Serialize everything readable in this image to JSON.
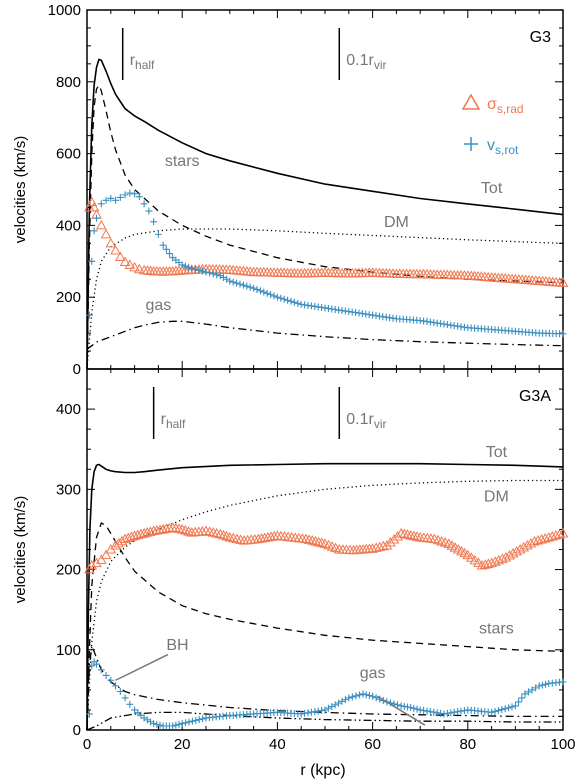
{
  "chart_data": [
    {
      "type": "line",
      "label": "G3",
      "ylabel": "velocities (km/s)",
      "xlim": [
        0,
        100
      ],
      "ylim": [
        0,
        1000
      ],
      "yticks": [
        0,
        200,
        400,
        600,
        800,
        1000
      ],
      "markers": [
        {
          "label": "r",
          "sub": "half",
          "x": 7.5
        },
        {
          "label": "0.1r",
          "sub": "vir",
          "x": 53
        }
      ],
      "legend": [
        {
          "symbol": "triangle",
          "name": "σ",
          "sub": "s,rad",
          "color": "#f07850"
        },
        {
          "symbol": "plus",
          "name": "v",
          "sub": "s,rot",
          "color": "#3a90c0"
        }
      ],
      "annotations": [
        {
          "text": "stars",
          "x": 20,
          "y": 565
        },
        {
          "text": "Tot",
          "x": 85,
          "y": 490
        },
        {
          "text": "DM",
          "x": 65,
          "y": 395
        },
        {
          "text": "gas",
          "x": 15,
          "y": 165
        }
      ],
      "series": [
        {
          "name": "Tot",
          "style": "solid",
          "x": [
            0,
            0.5,
            1,
            1.5,
            2,
            2.5,
            3,
            4,
            5,
            6,
            7,
            8,
            10,
            12,
            15,
            20,
            25,
            30,
            40,
            50,
            60,
            70,
            80,
            90,
            100
          ],
          "values": [
            0,
            450,
            680,
            790,
            840,
            862,
            860,
            830,
            795,
            765,
            745,
            725,
            705,
            690,
            665,
            630,
            600,
            580,
            545,
            515,
            495,
            475,
            460,
            445,
            430
          ]
        },
        {
          "name": "stars",
          "style": "dash",
          "x": [
            0,
            0.5,
            1,
            1.5,
            2,
            2.5,
            3,
            4,
            5,
            6,
            8,
            10,
            15,
            20,
            25,
            30,
            40,
            50,
            60,
            70,
            80,
            90,
            100
          ],
          "values": [
            0,
            350,
            600,
            730,
            780,
            790,
            775,
            720,
            660,
            610,
            540,
            500,
            440,
            400,
            370,
            345,
            310,
            285,
            270,
            258,
            250,
            245,
            240
          ]
        },
        {
          "name": "DM",
          "style": "dot",
          "x": [
            0,
            0.5,
            1,
            2,
            3,
            5,
            8,
            10,
            15,
            20,
            30,
            40,
            50,
            60,
            70,
            80,
            90,
            100
          ],
          "values": [
            0,
            80,
            160,
            250,
            300,
            340,
            365,
            375,
            385,
            390,
            390,
            385,
            378,
            372,
            366,
            360,
            355,
            350
          ]
        },
        {
          "name": "gas",
          "style": "dashdot",
          "x": [
            0,
            1,
            2,
            4,
            6,
            8,
            10,
            12,
            15,
            18,
            20,
            25,
            30,
            40,
            50,
            60,
            70,
            80,
            90,
            100
          ],
          "values": [
            55,
            65,
            75,
            85,
            95,
            105,
            115,
            122,
            130,
            133,
            133,
            125,
            115,
            100,
            90,
            82,
            76,
            72,
            68,
            65
          ]
        },
        {
          "name": "sigma_s_rad",
          "style": "triangle",
          "color": "#f07850",
          "x": [
            0.5,
            1,
            1.5,
            2,
            3,
            4,
            5,
            6,
            7,
            8,
            9,
            10,
            11,
            12,
            14,
            16,
            18,
            20,
            22,
            25,
            30,
            35,
            40,
            45,
            50,
            55,
            60,
            65,
            70,
            75,
            80,
            85,
            90,
            95,
            100
          ],
          "values": [
            450,
            465,
            450,
            430,
            400,
            375,
            350,
            330,
            312,
            298,
            290,
            283,
            278,
            275,
            272,
            271,
            272,
            274,
            276,
            278,
            276,
            270,
            268,
            266,
            268,
            266,
            268,
            265,
            264,
            262,
            260,
            255,
            250,
            245,
            240
          ]
        },
        {
          "name": "v_s_rot",
          "style": "plus",
          "color": "#3a90c0",
          "x": [
            0.5,
            1,
            1.5,
            2,
            3,
            4,
            5,
            6,
            7,
            8,
            9,
            10,
            11,
            12,
            13,
            14,
            15,
            16,
            18,
            20,
            22,
            25,
            28,
            30,
            35,
            40,
            45,
            50,
            55,
            60,
            65,
            70,
            75,
            80,
            85,
            90,
            95,
            100
          ],
          "values": [
            150,
            300,
            385,
            420,
            460,
            470,
            475,
            470,
            478,
            485,
            490,
            488,
            480,
            460,
            440,
            410,
            375,
            345,
            310,
            290,
            280,
            270,
            260,
            245,
            225,
            200,
            180,
            170,
            160,
            150,
            140,
            135,
            125,
            115,
            110,
            105,
            100,
            98
          ]
        }
      ]
    },
    {
      "type": "line",
      "label": "G3A",
      "xlabel": "r (kpc)",
      "ylabel": "velocities (km/s)",
      "xlim": [
        0,
        100
      ],
      "ylim": [
        0,
        450
      ],
      "yticks": [
        0,
        100,
        200,
        300,
        400
      ],
      "xticks": [
        0,
        20,
        40,
        60,
        80,
        100
      ],
      "markers": [
        {
          "label": "r",
          "sub": "half",
          "x": 14
        },
        {
          "label": "0.1r",
          "sub": "vir",
          "x": 53
        }
      ],
      "annotations": [
        {
          "text": "Tot",
          "x": 86,
          "y": 340
        },
        {
          "text": "DM",
          "x": 86,
          "y": 285
        },
        {
          "text": "stars",
          "x": 86,
          "y": 120
        },
        {
          "text": "BH",
          "x": 19,
          "y": 100
        },
        {
          "text": "gas",
          "x": 60,
          "y": 65
        }
      ],
      "arrows": [
        {
          "from": [
            17,
            94
          ],
          "to": [
            6,
            62
          ]
        },
        {
          "from": [
            61,
            42
          ],
          "to": [
            71,
            6
          ]
        }
      ],
      "series": [
        {
          "name": "Tot",
          "style": "solid",
          "x": [
            0,
            0.3,
            0.6,
            1,
            1.5,
            2,
            2.5,
            3,
            4,
            5,
            6,
            8,
            10,
            12,
            15,
            20,
            30,
            40,
            50,
            60,
            70,
            80,
            90,
            100
          ],
          "values": [
            0,
            150,
            250,
            300,
            322,
            330,
            331,
            329,
            325,
            323,
            322,
            321,
            321,
            322,
            324,
            327,
            330,
            331,
            332,
            332,
            332,
            331,
            330,
            328
          ]
        },
        {
          "name": "DM",
          "style": "dot",
          "x": [
            0,
            0.5,
            1,
            2,
            3,
            5,
            8,
            10,
            15,
            20,
            25,
            30,
            40,
            50,
            60,
            70,
            80,
            90,
            100
          ],
          "values": [
            0,
            60,
            110,
            160,
            185,
            210,
            228,
            236,
            250,
            262,
            272,
            280,
            292,
            300,
            305,
            308,
            310,
            311,
            311
          ]
        },
        {
          "name": "stars",
          "style": "dash",
          "x": [
            0,
            0.5,
            1,
            2,
            3,
            4,
            5,
            6,
            8,
            10,
            15,
            20,
            25,
            30,
            40,
            50,
            60,
            70,
            80,
            90,
            100
          ],
          "values": [
            0,
            100,
            180,
            240,
            258,
            255,
            245,
            235,
            215,
            198,
            172,
            155,
            145,
            138,
            127,
            118,
            112,
            108,
            104,
            100,
            98
          ]
        },
        {
          "name": "BH",
          "style": "dashdot",
          "x": [
            0,
            0.5,
            1,
            2,
            3,
            5,
            8,
            10,
            15,
            20,
            30,
            40,
            50,
            60,
            70,
            80,
            90,
            100
          ],
          "values": [
            0,
            80,
            105,
            90,
            75,
            60,
            48,
            44,
            38,
            34,
            28,
            24,
            22,
            20,
            19,
            18,
            17,
            17
          ]
        },
        {
          "name": "gas",
          "style": "dashdot2",
          "x": [
            0,
            2,
            5,
            10,
            15,
            20,
            30,
            40,
            50,
            60,
            70,
            80,
            90,
            100
          ],
          "values": [
            0,
            5,
            15,
            20,
            22,
            22,
            18,
            15,
            13,
            12,
            11,
            11,
            10,
            10
          ]
        },
        {
          "name": "sigma_s_rad",
          "style": "triangle",
          "color": "#f07850",
          "x": [
            0.5,
            1,
            2,
            3,
            4,
            5,
            6,
            8,
            10,
            12,
            14,
            16,
            18,
            20,
            22,
            25,
            28,
            30,
            33,
            36,
            40,
            43,
            46,
            50,
            53,
            56,
            60,
            63,
            66,
            70,
            73,
            76,
            80,
            83,
            85,
            88,
            91,
            94,
            97,
            100
          ],
          "values": [
            200,
            205,
            208,
            212,
            218,
            225,
            230,
            238,
            242,
            245,
            248,
            250,
            252,
            250,
            246,
            248,
            244,
            240,
            236,
            238,
            242,
            240,
            238,
            232,
            225,
            224,
            226,
            230,
            245,
            240,
            238,
            232,
            218,
            205,
            208,
            215,
            225,
            235,
            240,
            245
          ]
        },
        {
          "name": "v_s_rot",
          "style": "plus",
          "color": "#3a90c0",
          "x": [
            0.5,
            1,
            1.5,
            2,
            3,
            4,
            5,
            6,
            7,
            8,
            9,
            10,
            12,
            14,
            16,
            18,
            20,
            25,
            30,
            35,
            40,
            45,
            50,
            55,
            58,
            60,
            63,
            66,
            68,
            70,
            75,
            80,
            85,
            90,
            92,
            95,
            97,
            100
          ],
          "values": [
            20,
            80,
            85,
            82,
            75,
            68,
            62,
            55,
            48,
            40,
            32,
            25,
            15,
            8,
            5,
            5,
            8,
            15,
            18,
            20,
            22,
            20,
            25,
            40,
            45,
            42,
            35,
            30,
            28,
            25,
            20,
            25,
            22,
            30,
            45,
            55,
            58,
            60
          ]
        }
      ]
    }
  ],
  "colors": {
    "sigma": "#f07850",
    "vrot": "#3a90c0",
    "label": "#777777"
  }
}
